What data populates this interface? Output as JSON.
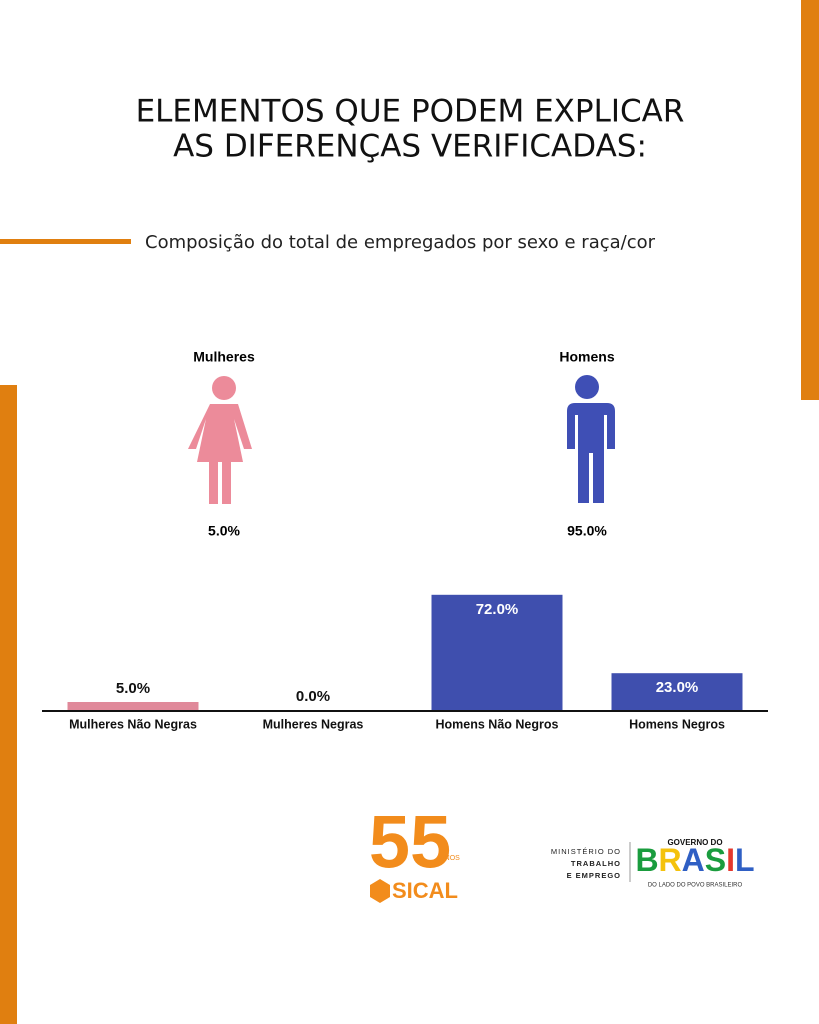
{
  "header": {
    "title_lines": [
      "ELEMENTOS QUE PODEM EXPLICAR",
      "AS DIFERENÇAS VERIFICADAS:"
    ],
    "subtitle": "Composição do total de empregados por sexo e raça/cor"
  },
  "chart_data": [
    {
      "type": "pictogram",
      "categories": [
        "Mulheres",
        "Homens"
      ],
      "values": [
        5.0,
        95.0
      ],
      "value_labels": [
        "5.0%",
        "95.0%"
      ],
      "colors": [
        "#ec8b9a",
        "#3f4fb5"
      ]
    },
    {
      "type": "bar",
      "categories": [
        "Mulheres Não Negras",
        "Mulheres Negras",
        "Homens Não Negros",
        "Homens Negros"
      ],
      "values": [
        5.0,
        0.0,
        72.0,
        23.0
      ],
      "value_labels": [
        "5.0%",
        "0.0%",
        "72.0%",
        "23.0%"
      ],
      "colors": [
        "#e0899a",
        "#e0899a",
        "#3f4fae",
        "#3f4fae"
      ]
    }
  ],
  "footer": {
    "sical": {
      "number": "55",
      "word": "ANOS",
      "name": "SICAL"
    },
    "ministry_lines": [
      "MINISTÉRIO DO",
      "TRABALHO",
      "E EMPREGO"
    ],
    "government": {
      "top": "GOVERNO DO",
      "name": "BRASIL",
      "slogan": "DO LADO DO POVO BRASILEIRO"
    }
  }
}
